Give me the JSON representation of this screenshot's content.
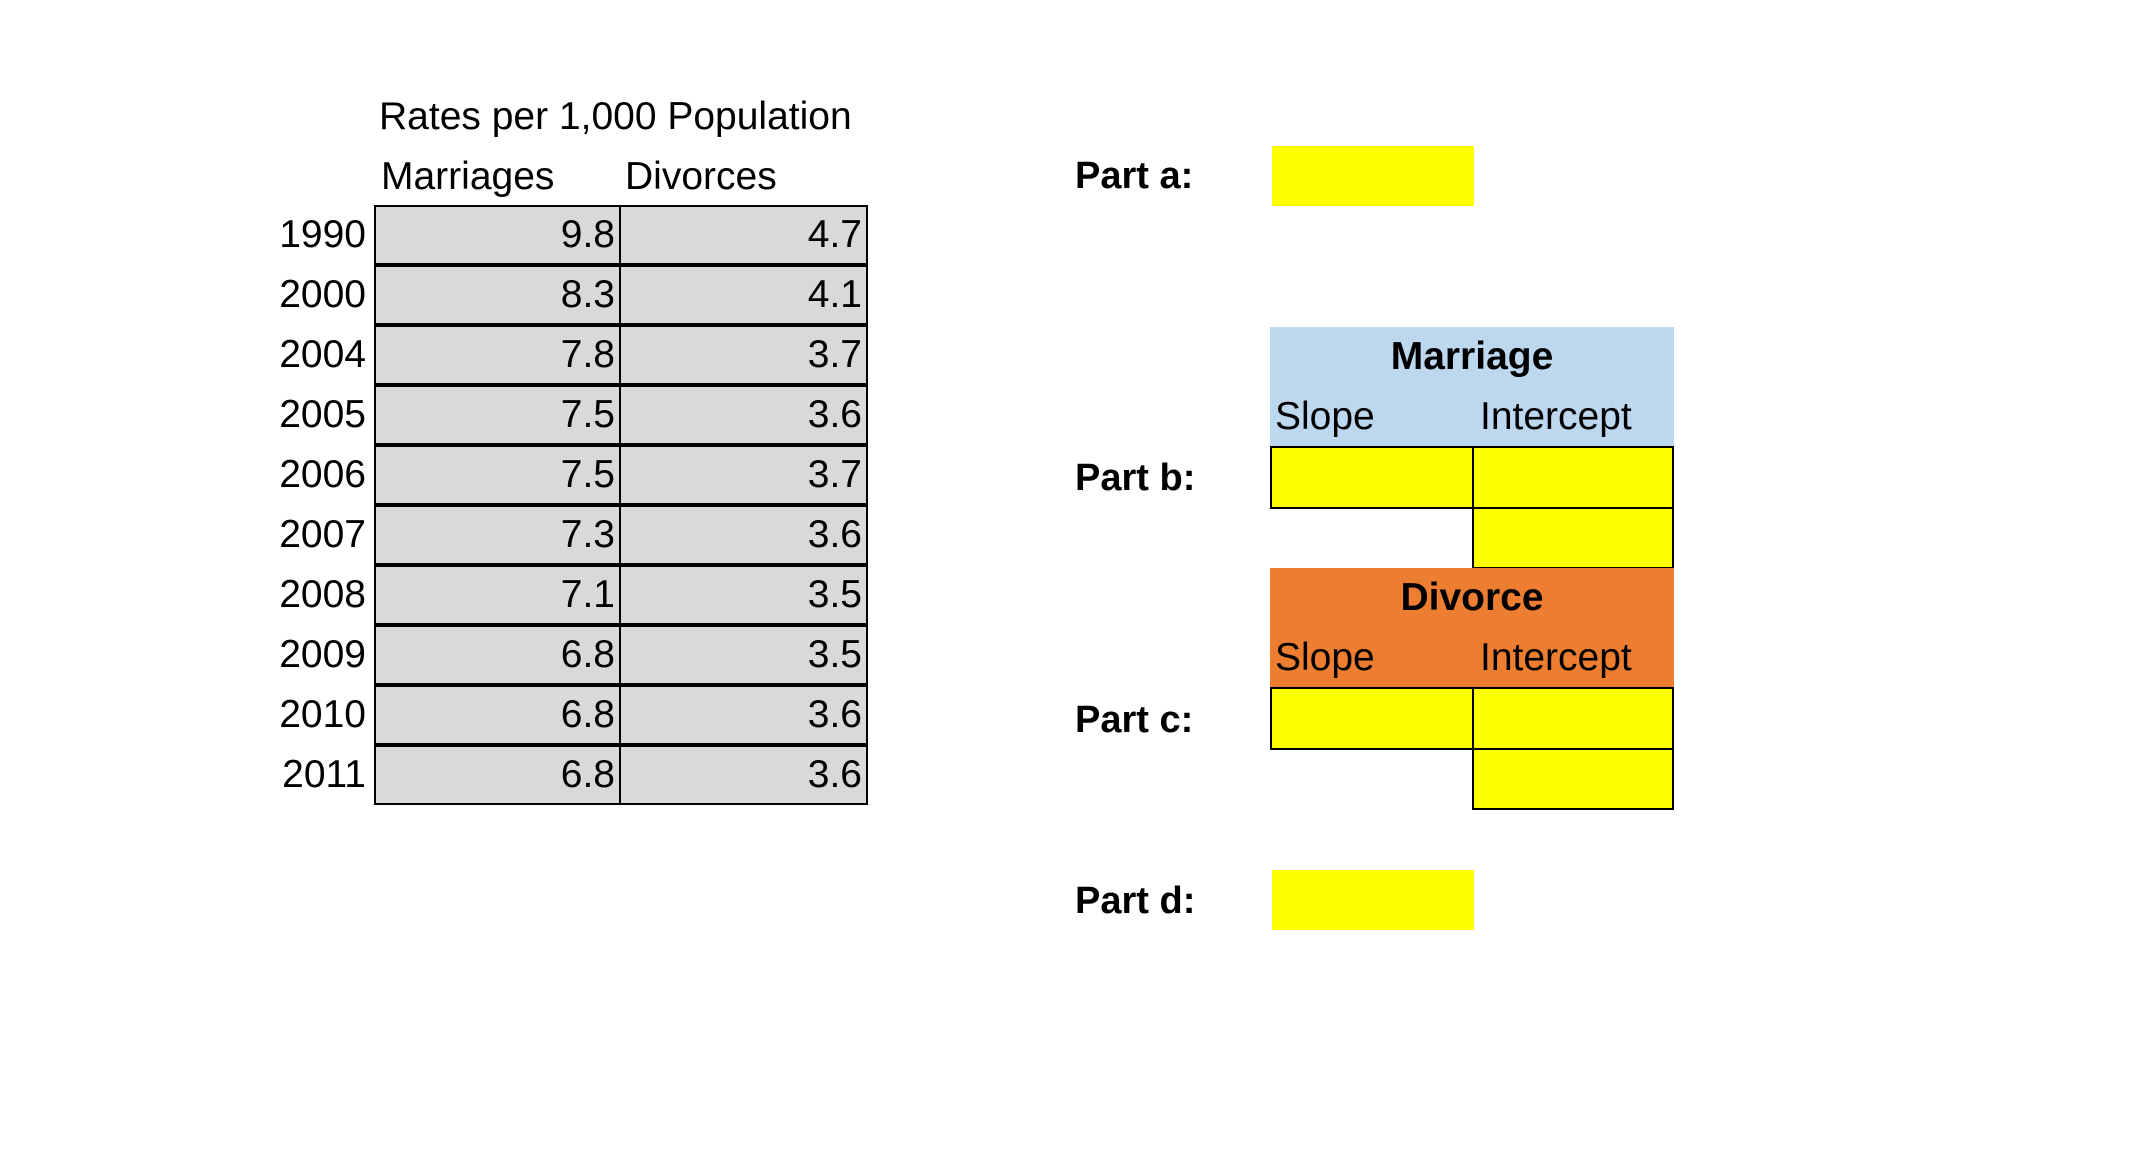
{
  "table": {
    "title": "Rates per 1,000 Population",
    "columns": [
      "Marriages",
      "Divorces"
    ],
    "rows": [
      {
        "year": "1990",
        "marriages": "9.8",
        "divorces": "4.7"
      },
      {
        "year": "2000",
        "marriages": "8.3",
        "divorces": "4.1"
      },
      {
        "year": "2004",
        "marriages": "7.8",
        "divorces": "3.7"
      },
      {
        "year": "2005",
        "marriages": "7.5",
        "divorces": "3.6"
      },
      {
        "year": "2006",
        "marriages": "7.5",
        "divorces": "3.7"
      },
      {
        "year": "2007",
        "marriages": "7.3",
        "divorces": "3.6"
      },
      {
        "year": "2008",
        "marriages": "7.1",
        "divorces": "3.5"
      },
      {
        "year": "2009",
        "marriages": "6.8",
        "divorces": "3.5"
      },
      {
        "year": "2010",
        "marriages": "6.8",
        "divorces": "3.6"
      },
      {
        "year": "2011",
        "marriages": "6.8",
        "divorces": "3.6"
      }
    ]
  },
  "parts": {
    "a": {
      "label": "Part a:",
      "value": ""
    },
    "b": {
      "label": "Part b:",
      "slope": "",
      "intercept": "",
      "extra": ""
    },
    "c": {
      "label": "Part c:",
      "slope": "",
      "intercept": "",
      "extra": ""
    },
    "d": {
      "label": "Part d:",
      "value": ""
    }
  },
  "marriage_header": {
    "title": "Marriage",
    "slope": "Slope",
    "intercept": "Intercept"
  },
  "divorce_header": {
    "title": "Divorce",
    "slope": "Slope",
    "intercept": "Intercept"
  },
  "colors": {
    "data_cell": "#d9d9d9",
    "answer_cell": "#ffff00",
    "marriage_header": "#bdd7ee",
    "divorce_header": "#ed7d31"
  }
}
